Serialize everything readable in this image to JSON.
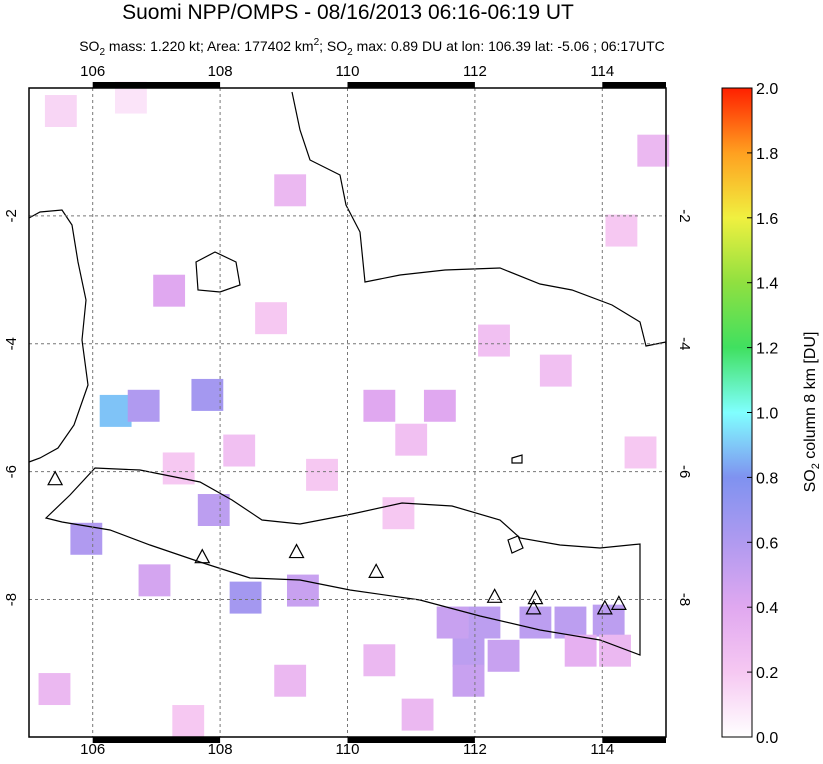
{
  "header": {
    "title": "Suomi NPP/OMPS - 08/16/2013 06:16-06:19 UT",
    "subtitle_parts": [
      "SO",
      "2",
      " mass: 1.220 kt; Area: 177402 km",
      "2",
      "; SO",
      "2",
      " max: 0.89 DU at lon: 106.39 lat: -5.06 ; 06:17UTC"
    ]
  },
  "map": {
    "xlim": [
      105,
      115
    ],
    "ylim": [
      -10.15,
      0
    ],
    "xticks": [
      106,
      108,
      110,
      112,
      114
    ],
    "yticks": [
      -2,
      -4,
      -6,
      -8
    ],
    "cell_size": [
      0.5,
      0.5
    ],
    "cells": [
      {
        "lon": 106.36,
        "lat": -5.05,
        "value": 0.89
      },
      {
        "lon": 106.8,
        "lat": -4.97,
        "value": 0.6
      },
      {
        "lon": 107.8,
        "lat": -4.8,
        "value": 0.65
      },
      {
        "lon": 105.9,
        "lat": -7.05,
        "value": 0.6
      },
      {
        "lon": 108.4,
        "lat": -7.97,
        "value": 0.65
      },
      {
        "lon": 107.9,
        "lat": -6.6,
        "value": 0.55
      },
      {
        "lon": 109.3,
        "lat": -7.86,
        "value": 0.5
      },
      {
        "lon": 106.97,
        "lat": -7.7,
        "value": 0.45
      },
      {
        "lon": 111.9,
        "lat": -8.8,
        "value": 0.55
      },
      {
        "lon": 112.45,
        "lat": -8.88,
        "value": 0.5
      },
      {
        "lon": 111.9,
        "lat": -9.27,
        "value": 0.5
      },
      {
        "lon": 111.65,
        "lat": -8.36,
        "value": 0.5
      },
      {
        "lon": 112.15,
        "lat": -8.36,
        "value": 0.55
      },
      {
        "lon": 112.95,
        "lat": -8.36,
        "value": 0.55
      },
      {
        "lon": 113.5,
        "lat": -8.36,
        "value": 0.55
      },
      {
        "lon": 114.1,
        "lat": -8.33,
        "value": 0.55
      },
      {
        "lon": 113.66,
        "lat": -8.8,
        "value": 0.35
      },
      {
        "lon": 114.2,
        "lat": -8.8,
        "value": 0.3
      },
      {
        "lon": 107.2,
        "lat": -3.17,
        "value": 0.4
      },
      {
        "lon": 114.8,
        "lat": -0.98,
        "value": 0.3
      },
      {
        "lon": 110.5,
        "lat": -4.97,
        "value": 0.4
      },
      {
        "lon": 111.45,
        "lat": -4.97,
        "value": 0.4
      },
      {
        "lon": 105.5,
        "lat": -0.36,
        "value": 0.15
      },
      {
        "lon": 106.6,
        "lat": -0.15,
        "value": 0.1
      },
      {
        "lon": 109.1,
        "lat": -1.6,
        "value": 0.3
      },
      {
        "lon": 113.27,
        "lat": -4.42,
        "value": 0.25
      },
      {
        "lon": 112.3,
        "lat": -3.95,
        "value": 0.25
      },
      {
        "lon": 109.6,
        "lat": -6.05,
        "value": 0.2
      },
      {
        "lon": 110.8,
        "lat": -6.65,
        "value": 0.2
      },
      {
        "lon": 110.5,
        "lat": -8.95,
        "value": 0.3
      },
      {
        "lon": 111.1,
        "lat": -9.8,
        "value": 0.3
      },
      {
        "lon": 105.4,
        "lat": -9.4,
        "value": 0.3
      },
      {
        "lon": 109.1,
        "lat": -9.27,
        "value": 0.3
      },
      {
        "lon": 107.5,
        "lat": -9.9,
        "value": 0.2
      },
      {
        "lon": 114.3,
        "lat": -2.23,
        "value": 0.2
      },
      {
        "lon": 114.6,
        "lat": -5.7,
        "value": 0.2
      },
      {
        "lon": 108.3,
        "lat": -5.67,
        "value": 0.25
      },
      {
        "lon": 107.35,
        "lat": -5.95,
        "value": 0.2
      },
      {
        "lon": 108.8,
        "lat": -3.6,
        "value": 0.2
      },
      {
        "lon": 111.0,
        "lat": -5.5,
        "value": 0.25
      }
    ],
    "volcanoes": [
      {
        "lon": 105.41,
        "lat": -6.11
      },
      {
        "lon": 107.72,
        "lat": -7.33
      },
      {
        "lon": 109.2,
        "lat": -7.25
      },
      {
        "lon": 110.45,
        "lat": -7.56
      },
      {
        "lon": 112.31,
        "lat": -7.95
      },
      {
        "lon": 112.95,
        "lat": -7.97
      },
      {
        "lon": 112.92,
        "lat": -8.13
      },
      {
        "lon": 114.04,
        "lat": -8.13
      },
      {
        "lon": 114.26,
        "lat": -8.06
      }
    ]
  },
  "colorbar": {
    "label_parts": [
      "SO",
      "2",
      " column 8 km [DU]"
    ],
    "clim": [
      0,
      2
    ],
    "ticks": [
      {
        "value": 0,
        "label": "0.0"
      },
      {
        "value": 0.2,
        "label": "0.2"
      },
      {
        "value": 0.4,
        "label": "0.4"
      },
      {
        "value": 0.6,
        "label": "0.6"
      },
      {
        "value": 0.8,
        "label": "0.8"
      },
      {
        "value": 1,
        "label": "1.0"
      },
      {
        "value": 1.2,
        "label": "1.2"
      },
      {
        "value": 1.4,
        "label": "1.4"
      },
      {
        "value": 1.6,
        "label": "1.6"
      },
      {
        "value": 1.8,
        "label": "1.8"
      },
      {
        "value": 2,
        "label": "2.0"
      }
    ],
    "colormap": [
      "#ffffff",
      "#f6c8f2",
      "#e0a8f0",
      "#b09af0",
      "#7f92f0",
      "#80ffff",
      "#40e060",
      "#90e040",
      "#f0f040",
      "#ffa020",
      "#ff2000"
    ]
  }
}
